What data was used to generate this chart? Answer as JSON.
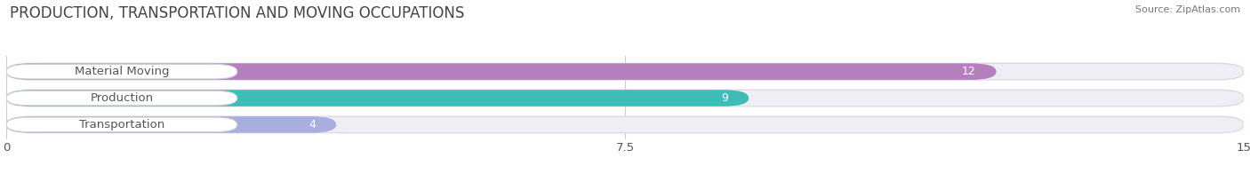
{
  "title": "PRODUCTION, TRANSPORTATION AND MOVING OCCUPATIONS",
  "source": "Source: ZipAtlas.com",
  "categories": [
    "Material Moving",
    "Production",
    "Transportation"
  ],
  "values": [
    12,
    9,
    4
  ],
  "bar_colors": [
    "#b57fbe",
    "#3dbcb8",
    "#a8aede"
  ],
  "bar_bg_color": "#f0eef5",
  "bar_border_color": "#ddd8e8",
  "xlim": [
    0,
    15
  ],
  "xticks": [
    0,
    7.5,
    15
  ],
  "figsize": [
    14.06,
    1.96
  ],
  "dpi": 100,
  "title_fontsize": 12,
  "label_fontsize": 9.5,
  "value_fontsize": 9,
  "bar_height": 0.62,
  "background_color": "#ffffff",
  "text_color": "#555555",
  "title_color": "#444444"
}
